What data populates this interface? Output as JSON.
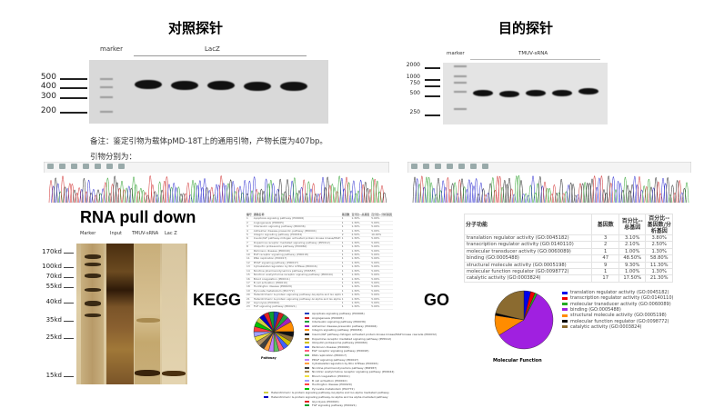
{
  "control": {
    "title": "对照探针",
    "marker_label": "marker",
    "sample_label": "LacZ",
    "ladder": [
      "500",
      "400",
      "300",
      "200"
    ]
  },
  "target": {
    "title": "目的探针",
    "marker_label": "marker",
    "sample_label": "TMUV-sRNA",
    "ladder": [
      "2000",
      "1000",
      "750",
      "500",
      "250"
    ]
  },
  "note": {
    "line1": "备注：鉴定引物为载体pMD-18T上的通用引物，产物长度为407bp。",
    "line2": "引物分别为："
  },
  "pulldown": {
    "title": "RNA pull down",
    "lanes": [
      "Marker",
      "Input",
      "TMUV-sRNA",
      "Lac Z"
    ],
    "sizes": [
      "170kd",
      "100kd",
      "70kd",
      "55kd",
      "40kd",
      "35kd",
      "25kd",
      "15kd"
    ]
  },
  "kegg": {
    "label": "KEGG",
    "headers": [
      "编号",
      "通路名称",
      "基因数",
      "百分比--总基因",
      "百分比--分析基因"
    ],
    "pie_title": "Pathway",
    "rows": [
      [
        "1",
        "Apoptosis signaling pathway (P00006)",
        "1",
        "1.30%",
        "5.00%"
      ],
      [
        "2",
        "Angiogenesis (P00005)",
        "1",
        "1.30%",
        "5.00%"
      ],
      [
        "3",
        "Interleukin signaling pathway (P00036)",
        "1",
        "1.30%",
        "5.00%"
      ],
      [
        "4",
        "Alzheimer disease-presenilin pathway (P00004)",
        "1",
        "1.30%",
        "5.00%"
      ],
      [
        "5",
        "Integrin signalling pathway (P00034)",
        "2",
        "2.50%",
        "10.00%"
      ],
      [
        "6",
        "Insulin/IGF pathway-mitogen activated protein kinase kinase/MAP kinase cascade (P00032)",
        "1",
        "1.30%",
        "5.00%"
      ],
      [
        "7",
        "Dopamine receptor mediated signaling pathway (P05912)",
        "1",
        "1.30%",
        "5.00%"
      ],
      [
        "8",
        "Ubiquitin proteasome pathway (P00060)",
        "1",
        "1.30%",
        "5.00%"
      ],
      [
        "9",
        "Parkinson disease (P00049)",
        "1",
        "1.30%",
        "5.00%"
      ],
      [
        "10",
        "EGF receptor signaling pathway (P00018)",
        "1",
        "1.30%",
        "5.00%"
      ],
      [
        "11",
        "DNA replication (P00017)",
        "1",
        "1.30%",
        "5.00%"
      ],
      [
        "12",
        "PDGF signaling pathway (P00047)",
        "1",
        "1.30%",
        "5.00%"
      ],
      [
        "13",
        "Cytoskeletal regulation by Rho GTPase (P00016)",
        "1",
        "1.30%",
        "5.00%"
      ],
      [
        "14",
        "Nicotine pharmacodynamics pathway (P06587)",
        "1",
        "1.30%",
        "5.00%"
      ],
      [
        "15",
        "Nicotinic acetylcholine receptor signaling pathway (P00044)",
        "1",
        "1.30%",
        "5.00%"
      ],
      [
        "16",
        "Blood coagulation (P00011)",
        "1",
        "1.30%",
        "5.00%"
      ],
      [
        "17",
        "B cell activation (P00010)",
        "1",
        "1.30%",
        "5.00%"
      ],
      [
        "18",
        "Huntington disease (P00029)",
        "1",
        "1.30%",
        "5.00%"
      ],
      [
        "19",
        "Pyruvate metabolism (P02772)",
        "1",
        "1.30%",
        "5.00%"
      ],
      [
        "20",
        "Heterotrimeric G-protein signaling pathway-Gq alpha and Go alpha mediated pathway",
        "1",
        "1.30%",
        "5.00%"
      ],
      [
        "21",
        "Heterotrimeric G-protein signaling pathway-Gi alpha and Gs alpha mediated pathway",
        "1",
        "1.30%",
        "5.00%"
      ],
      [
        "22",
        "Glycolysis (P00024)",
        "1",
        "1.30%",
        "5.00%"
      ],
      [
        "23",
        "FGF signaling pathway (P00021)",
        "1",
        "1.30%",
        "5.00%"
      ]
    ],
    "colors": [
      "#1f3fbf",
      "#d02020",
      "#20a040",
      "#a020c0",
      "#ff8c00",
      "#111111",
      "#8b6b3a",
      "#d0c000",
      "#4060ff",
      "#ff6080",
      "#60c060",
      "#c080ff",
      "#ffa040",
      "#404040",
      "#b09060",
      "#f0e040",
      "#a0a0ff",
      "#ff4040",
      "#00c000",
      "#d0d040",
      "#0000c0",
      "#e02020",
      "#10a030"
    ]
  },
  "go": {
    "label": "GO",
    "headers": [
      "分子功能",
      "基因数",
      "百分比--总基因",
      "百分比--基因数/分析基因"
    ],
    "pie_title": "Molecular Function",
    "rows": [
      [
        "translation regulator activity (GO:0045182)",
        "3",
        "3.10%",
        "3.80%"
      ],
      [
        "transcription regulator activity (GO:0140110)",
        "2",
        "2.10%",
        "2.50%"
      ],
      [
        "molecular transducer activity (GO:0060089)",
        "1",
        "1.00%",
        "1.30%"
      ],
      [
        "binding (GO:0005488)",
        "47",
        "48.50%",
        "58.80%"
      ],
      [
        "structural molecule activity (GO:0005198)",
        "9",
        "9.30%",
        "11.30%"
      ],
      [
        "molecular function regulator (GO:0098772)",
        "1",
        "1.00%",
        "1.30%"
      ],
      [
        "catalytic activity (GO:0003824)",
        "17",
        "17.50%",
        "21.30%"
      ]
    ],
    "colors": [
      "#0000ee",
      "#ee0000",
      "#22aa22",
      "#a020e0",
      "#ff8c00",
      "#000000",
      "#8b6b30"
    ]
  }
}
